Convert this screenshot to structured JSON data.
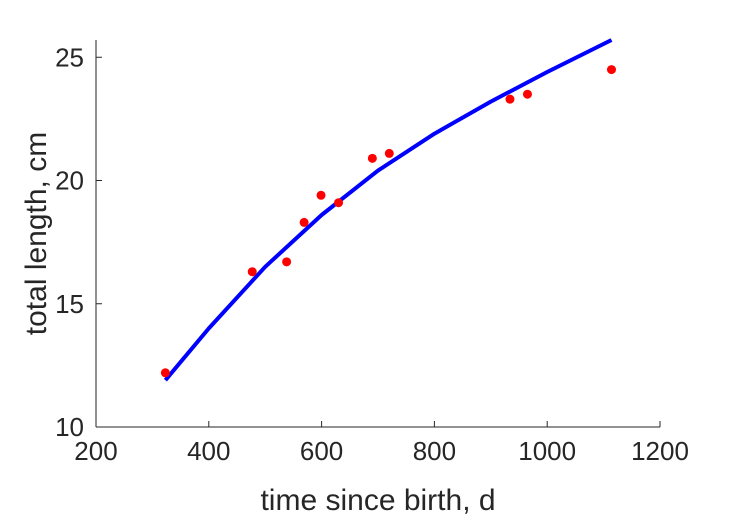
{
  "chart_data": {
    "type": "scatter",
    "xlabel": "time since birth, d",
    "ylabel": "total length, cm",
    "xlim": [
      200,
      1200
    ],
    "ylim": [
      10,
      25.7
    ],
    "xticks": [
      "200",
      "400",
      "600",
      "800",
      "1000",
      "1200"
    ],
    "yticks": [
      "10",
      "15",
      "20",
      "25"
    ],
    "grid": false,
    "series": [
      {
        "kind": "points",
        "color": "#ff0000",
        "x": [
          323,
          477,
          538,
          569,
          599,
          630,
          690,
          720,
          934,
          965,
          1114
        ],
        "y": [
          12.2,
          16.3,
          16.7,
          18.3,
          19.4,
          19.1,
          20.9,
          21.1,
          23.3,
          23.5,
          24.5
        ]
      },
      {
        "kind": "line",
        "color": "#0000ff",
        "x": [
          323,
          400,
          500,
          600,
          700,
          800,
          900,
          1000,
          1114
        ],
        "y": [
          11.9,
          14.0,
          16.5,
          18.6,
          20.4,
          21.9,
          23.2,
          24.4,
          25.7
        ]
      }
    ]
  }
}
